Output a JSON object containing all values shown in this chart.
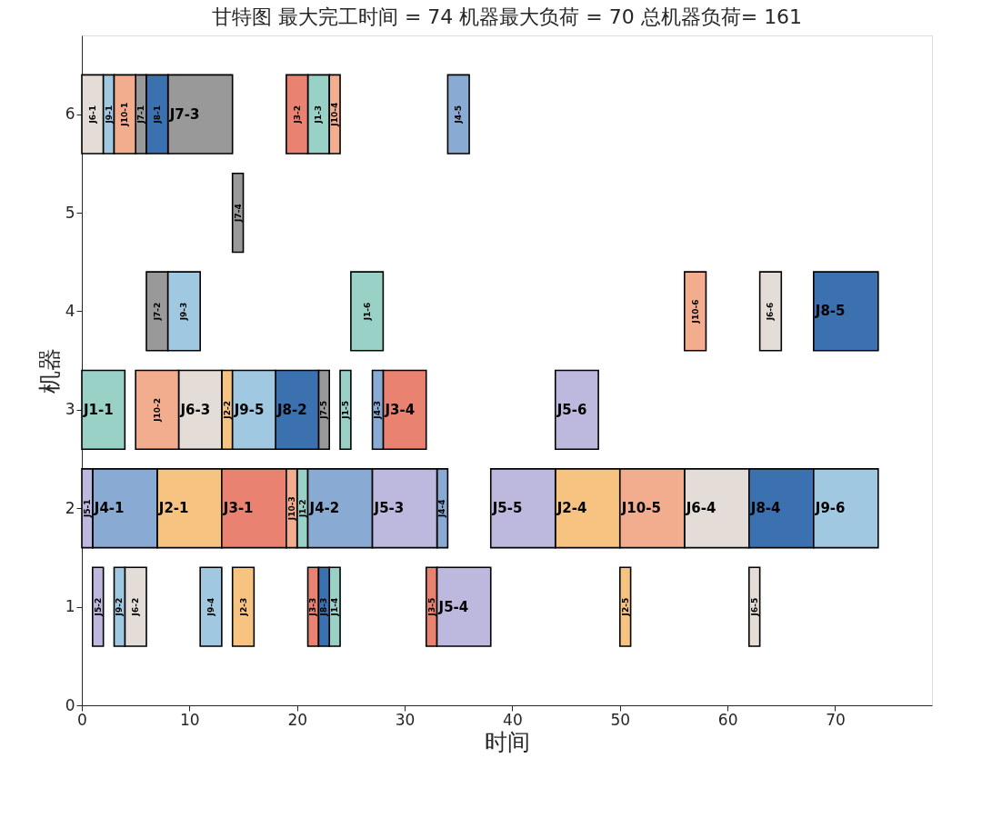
{
  "chart_data": {
    "type": "bar",
    "orientation": "horizontal",
    "title": "甘特图 最大完工时间 = 74 机器最大负荷 = 70 总机器负荷= 161",
    "xlabel": "时间",
    "ylabel": "机器",
    "xlim": [
      0,
      79
    ],
    "xticks": [
      0,
      10,
      20,
      30,
      40,
      50,
      60,
      70
    ],
    "ylim": [
      0,
      6.8
    ],
    "yticks": [
      0,
      1,
      2,
      3,
      4,
      5,
      6
    ],
    "series": [
      {
        "color": "#99d1c7",
        "x": [
          3
        ],
        "base": [
          0
        ],
        "values": [
          4
        ],
        "value_labels": [
          "J1-1"
        ]
      },
      {
        "color": "#99d1c7",
        "x": [
          1,
          2,
          3,
          4,
          6
        ],
        "base": [
          23,
          20,
          24,
          25,
          21
        ],
        "values": [
          1,
          1,
          1,
          3,
          2
        ],
        "value_labels": [
          "J1-4",
          "J1-2",
          "J1-5",
          "J1-6",
          "J1-3"
        ]
      },
      {
        "color": "#f6c480",
        "x": [
          1,
          2,
          3
        ],
        "base": [
          14,
          7,
          13
        ],
        "values": [
          2,
          6,
          1
        ],
        "value_labels": [
          "J2-3",
          "J2-1",
          "J2-2"
        ]
      },
      {
        "color": "#f6c480",
        "x": [
          1,
          2
        ],
        "base": [
          50,
          44
        ],
        "values": [
          1,
          6
        ],
        "value_labels": [
          "J2-5",
          "J2-4"
        ]
      },
      {
        "color": "#e98270",
        "x": [
          1,
          2,
          3,
          6
        ],
        "base": [
          21,
          13,
          28,
          19
        ],
        "values": [
          1,
          6,
          4,
          2
        ],
        "value_labels": [
          "J3-3",
          "J3-1",
          "J3-4",
          "J3-2"
        ]
      },
      {
        "color": "#e98270",
        "x": [
          1
        ],
        "base": [
          32
        ],
        "values": [
          1
        ],
        "value_labels": [
          "J3-5"
        ]
      },
      {
        "color": "#89aad2",
        "x": [
          2,
          3,
          6
        ],
        "base": [
          1,
          27,
          34
        ],
        "values": [
          6,
          1,
          2
        ],
        "value_labels": [
          "J4-1",
          "J4-3",
          "J4-5"
        ]
      },
      {
        "color": "#89aad2",
        "x": [
          2
        ],
        "base": [
          21
        ],
        "values": [
          6
        ],
        "value_labels": [
          "J4-2"
        ]
      },
      {
        "color": "#89aad2",
        "x": [
          2
        ],
        "base": [
          33
        ],
        "values": [
          1
        ],
        "value_labels": [
          "J4-4"
        ]
      },
      {
        "color": "#bdb8dd",
        "x": [
          2,
          3
        ],
        "base": [
          0,
          44
        ],
        "values": [
          1,
          4
        ],
        "value_labels": [
          "J5-1",
          "J5-6"
        ]
      },
      {
        "color": "#bdb8dd",
        "x": [
          1,
          2
        ],
        "base": [
          1,
          27
        ],
        "values": [
          1,
          6
        ],
        "value_labels": [
          "J5-2",
          "J5-3"
        ]
      },
      {
        "color": "#bdb8dd",
        "x": [
          1,
          2
        ],
        "base": [
          33,
          38
        ],
        "values": [
          5,
          6
        ],
        "value_labels": [
          "J5-4",
          "J5-5"
        ]
      },
      {
        "color": "#e4dcd6",
        "x": [
          1,
          2,
          3,
          4,
          6
        ],
        "base": [
          4,
          56,
          9,
          63,
          0
        ],
        "values": [
          2,
          6,
          4,
          2,
          2
        ],
        "value_labels": [
          "J6-2",
          "J6-4",
          "J6-3",
          "J6-6",
          "J6-1"
        ]
      },
      {
        "color": "#e4dcd6",
        "x": [
          1
        ],
        "base": [
          62
        ],
        "values": [
          1
        ],
        "value_labels": [
          "J6-5"
        ]
      },
      {
        "color": "#999999",
        "x": [
          6
        ],
        "base": [
          5
        ],
        "values": [
          1
        ],
        "value_labels": [
          "J7-1"
        ]
      },
      {
        "color": "#999999",
        "x": [
          3,
          4,
          5,
          6
        ],
        "base": [
          22,
          6,
          14,
          8
        ],
        "values": [
          1,
          2,
          1,
          6
        ],
        "value_labels": [
          "J7-5",
          "J7-2",
          "J7-4",
          "J7-3"
        ]
      },
      {
        "color": "#3c71b0",
        "x": [
          1,
          2,
          3,
          4,
          6
        ],
        "base": [
          22,
          62,
          18,
          68,
          6
        ],
        "values": [
          1,
          6,
          4,
          6,
          2
        ],
        "value_labels": [
          "J8-3",
          "J8-4",
          "J8-2",
          "J8-5",
          "J8-1"
        ]
      },
      {
        "color": "#a0c9e1",
        "x": [
          1,
          2,
          3,
          4,
          6
        ],
        "base": [
          3,
          68,
          14,
          8,
          2
        ],
        "values": [
          1,
          6,
          4,
          3,
          1
        ],
        "value_labels": [
          "J9-2",
          "J9-6",
          "J9-5",
          "J9-3",
          "J9-1"
        ]
      },
      {
        "color": "#a0c9e1",
        "x": [
          1
        ],
        "base": [
          11
        ],
        "values": [
          2
        ],
        "value_labels": [
          "J9-4"
        ]
      },
      {
        "color": "#f1ad8e",
        "x": [
          2,
          6
        ],
        "base": [
          19,
          3
        ],
        "values": [
          1,
          2
        ],
        "value_labels": [
          "J10-3",
          "J10-1"
        ]
      },
      {
        "color": "#f1ad8e",
        "x": [
          2,
          3,
          4,
          6
        ],
        "base": [
          50,
          5,
          56,
          23
        ],
        "values": [
          6,
          4,
          2,
          1
        ],
        "value_labels": [
          "J10-5",
          "J10-2",
          "J10-6",
          "J10-4"
        ]
      }
    ]
  }
}
